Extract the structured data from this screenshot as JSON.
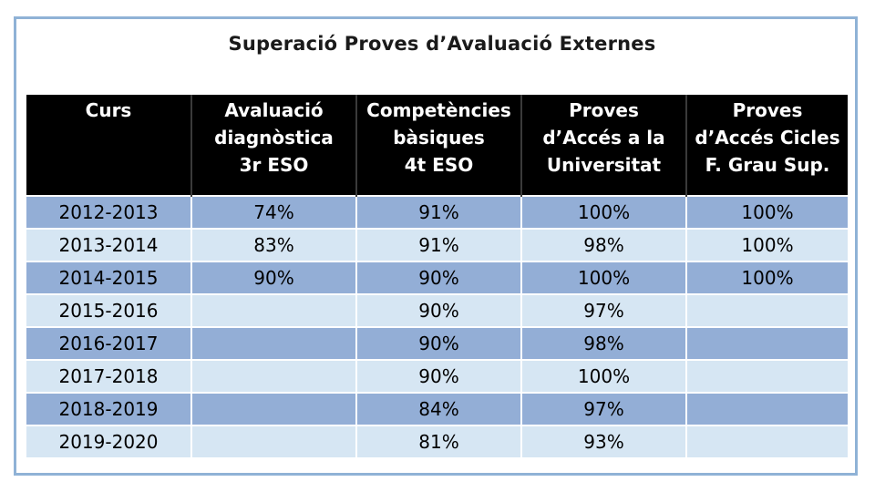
{
  "title": "Superació Proves d’Avaluació Externes",
  "columns": [
    "Curs",
    "Avaluació\ndiagnòstica\n3r ESO",
    "Competències\nbàsiques\n4t ESO",
    "Proves\nd’Accés a la\nUniversitat",
    "Proves\nd’Accés Cicles\nF. Grau Sup."
  ],
  "rows": [
    [
      "2012-2013",
      "74%",
      "91%",
      "100%",
      "100%"
    ],
    [
      "2013-2014",
      "83%",
      "91%",
      "98%",
      "100%"
    ],
    [
      "2014-2015",
      "90%",
      "90%",
      "100%",
      "100%"
    ],
    [
      "2015-2016",
      "",
      "90%",
      "97%",
      ""
    ],
    [
      "2016-2017",
      "",
      "90%",
      "98%",
      ""
    ],
    [
      "2017-2018",
      "",
      "90%",
      "100%",
      ""
    ],
    [
      "2018-2019",
      "",
      "84%",
      "97%",
      ""
    ],
    [
      "2019-2020",
      "",
      "81%",
      "93%",
      ""
    ]
  ],
  "colors": {
    "header_bg": "#000000",
    "row_dark": "#93aed6",
    "row_light": "#d6e6f3",
    "frame_border": "#8fb2d6"
  }
}
